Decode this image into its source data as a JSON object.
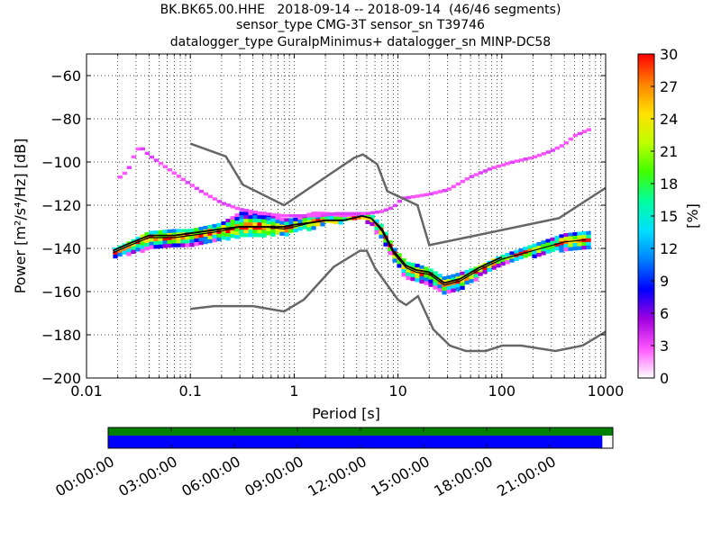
{
  "header": {
    "line1": "BK.BK65.00.HHE   2018-09-14 -- 2018-09-14  (46/46 segments)",
    "line2": "sensor_type CMG-3T sensor_sn T39746",
    "line3": "datalogger_type GuralpMinimus+ datalogger_sn MINP-DC58"
  },
  "chart_data": [
    {
      "type": "heatmap",
      "xlabel": "Period [s]",
      "ylabel": "Power [m²/s⁴/Hz] [dB]",
      "xscale": "log",
      "xlim": [
        0.01,
        1000
      ],
      "ylim": [
        -200,
        -50
      ],
      "x_ticks": [
        0.01,
        0.1,
        1,
        10,
        100,
        1000
      ],
      "x_tick_labels": [
        "0.01",
        "0.1",
        "1",
        "10",
        "100",
        "1000"
      ],
      "y_ticks": [
        -200,
        -180,
        -160,
        -140,
        -120,
        -100,
        -80,
        -60
      ],
      "y_tick_labels": [
        "−200",
        "−180",
        "−160",
        "−140",
        "−120",
        "−100",
        "−80",
        "−60"
      ],
      "grid": "dotted",
      "colorbar": {
        "label": "[%]",
        "range": [
          0,
          30
        ],
        "ticks": [
          0,
          3,
          6,
          9,
          12,
          15,
          18,
          21,
          24,
          27,
          30
        ],
        "colors": [
          "#ffffff",
          "#ff55ff",
          "#a000e0",
          "#0000ff",
          "#0080ff",
          "#00e0ff",
          "#00ffa0",
          "#40ff00",
          "#c0ff00",
          "#ffe000",
          "#ff8000",
          "#ff0000"
        ]
      },
      "noise_models": {
        "color": "#666666",
        "nhnm": {
          "period": [
            0.1,
            0.22,
            0.32,
            0.8,
            3.8,
            4.6,
            6.3,
            7.9,
            15.4,
            20,
            354.8,
            1000
          ],
          "db": [
            -91.5,
            -97.4,
            -110.5,
            -120,
            -98,
            -96.5,
            -101,
            -113.5,
            -120,
            -138.5,
            -126,
            -112
          ]
        },
        "nlnm": {
          "period": [
            0.1,
            0.17,
            0.4,
            0.8,
            1.24,
            2.4,
            4.3,
            5.0,
            6.0,
            10.0,
            12.0,
            15.6,
            21.9,
            31.6,
            45,
            70,
            101,
            154,
            328,
            600,
            1000
          ],
          "db": [
            -168,
            -166.7,
            -166.7,
            -169.2,
            -163.7,
            -148.6,
            -141.1,
            -141.1,
            -149,
            -163.8,
            -166.2,
            -162.1,
            -177.5,
            -185,
            -187.5,
            -187.5,
            -185,
            -185,
            -187.5,
            -185,
            -178.6
          ]
        }
      },
      "density_bands": [
        {
          "name": "main",
          "period": [
            0.018,
            0.025,
            0.04,
            0.07,
            0.1,
            0.2,
            0.3,
            0.5,
            0.8,
            1.0,
            1.5,
            2.0,
            3.0,
            4.5,
            5.5,
            7.0,
            9.0,
            12,
            15,
            20,
            28,
            40,
            60,
            100,
            200,
            400,
            650
          ],
          "low_db": [
            -145,
            -142,
            -140,
            -139,
            -138,
            -136,
            -134,
            -134,
            -133,
            -132,
            -130,
            -128,
            -127,
            -126,
            -128,
            -135,
            -145,
            -153,
            -155,
            -156,
            -160,
            -158,
            -153,
            -147,
            -143,
            -140,
            -139
          ],
          "high_db": [
            -140,
            -137,
            -132,
            -131,
            -131,
            -128,
            -123,
            -123,
            -126,
            -126,
            -123,
            -123,
            -124,
            -123,
            -124,
            -129,
            -139,
            -146,
            -147,
            -149,
            -153,
            -151,
            -148,
            -143,
            -138,
            -133,
            -132
          ]
        },
        {
          "name": "spike",
          "period": [
            0.02,
            0.025,
            0.03,
            0.033,
            0.04,
            0.06,
            0.09,
            0.13,
            0.2,
            0.3,
            0.5,
            0.8,
            1.2,
            1.8,
            2.5,
            3.5,
            5.0,
            7.0,
            9.0,
            11,
            15,
            20,
            30,
            50,
            80,
            130,
            200,
            300,
            400,
            500,
            700
          ],
          "db": [
            -108,
            -104,
            -95,
            -93,
            -97,
            -103,
            -109,
            -114,
            -119,
            -122,
            -124,
            -125,
            -125,
            -125,
            -124,
            -124,
            -124,
            -123,
            -121,
            -117,
            -116,
            -115,
            -113,
            -107,
            -103,
            -100,
            -98,
            -95,
            -92,
            -88,
            -85
          ]
        },
        {
          "name": "median",
          "period": [
            0.018,
            0.025,
            0.04,
            0.07,
            0.1,
            0.2,
            0.3,
            0.5,
            0.8,
            1.0,
            1.5,
            2.0,
            3.0,
            4.5,
            5.5,
            7.0,
            9.0,
            12,
            15,
            20,
            28,
            40,
            60,
            100,
            200,
            400,
            650
          ],
          "db": [
            -142,
            -139,
            -135,
            -135,
            -134,
            -132,
            -130,
            -130,
            -131,
            -130,
            -128,
            -127,
            -127,
            -125,
            -126,
            -132,
            -142,
            -149,
            -151,
            -152,
            -157,
            -155,
            -150,
            -145,
            -141,
            -137,
            -136
          ]
        },
        {
          "name": "mean",
          "period": [
            0.018,
            0.025,
            0.04,
            0.07,
            0.1,
            0.2,
            0.3,
            0.5,
            0.8,
            1.0,
            1.5,
            2.0,
            3.0,
            4.5,
            5.5,
            7.0,
            9.0,
            12,
            15,
            20,
            28,
            40,
            60,
            100
          ],
          "db": [
            -141,
            -138,
            -134,
            -134,
            -133,
            -131,
            -130,
            -130,
            -130,
            -129,
            -128,
            -127,
            -127,
            -125,
            -126,
            -131,
            -141,
            -148,
            -150,
            -151,
            -156,
            -154,
            -149,
            -144
          ]
        }
      ]
    },
    {
      "type": "bar",
      "xlabel": "",
      "x_tick_labels": [
        "00:00:00",
        "03:00:00",
        "06:00:00",
        "09:00:00",
        "12:00:00",
        "15:00:00",
        "18:00:00",
        "21:00:00"
      ],
      "tick_hours": [
        0,
        3,
        6,
        9,
        12,
        15,
        18,
        21
      ],
      "range_hours": [
        0,
        24
      ],
      "series": [
        {
          "color": "#008000",
          "start_hours": 0,
          "end_hours": 24
        },
        {
          "color": "#0000ff",
          "start_hours": 0,
          "end_hours": 23.5
        }
      ]
    }
  ]
}
